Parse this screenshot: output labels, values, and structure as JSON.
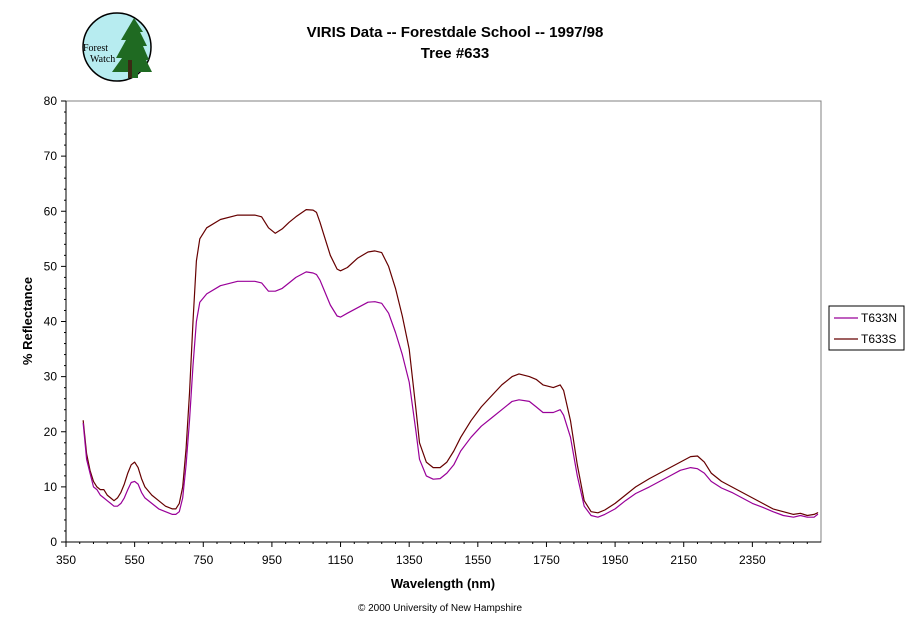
{
  "logo": {
    "line1": "Forest",
    "line2": "Watch"
  },
  "copyright": "© 2000 University of New Hampshire",
  "chart_data": {
    "type": "line",
    "title": "VIRIS Data -- Forestdale School -- 1997/98",
    "subtitle": "Tree #633",
    "xlabel": "Wavelength (nm)",
    "ylabel": "% Reflectance",
    "xlim": [
      350,
      2550
    ],
    "ylim": [
      0,
      80
    ],
    "xticks": [
      350,
      550,
      750,
      950,
      1150,
      1350,
      1550,
      1750,
      1950,
      2150,
      2350
    ],
    "yticks": [
      0,
      10,
      20,
      30,
      40,
      50,
      60,
      70,
      80
    ],
    "grid": false,
    "legend_position": "right",
    "series": [
      {
        "name": "T633N",
        "color": "#990099",
        "points": [
          [
            400,
            21.5
          ],
          [
            410,
            15
          ],
          [
            420,
            12.5
          ],
          [
            430,
            10
          ],
          [
            440,
            9.5
          ],
          [
            450,
            8.5
          ],
          [
            460,
            8
          ],
          [
            470,
            7.5
          ],
          [
            480,
            7
          ],
          [
            490,
            6.5
          ],
          [
            500,
            6.5
          ],
          [
            510,
            7
          ],
          [
            520,
            8
          ],
          [
            530,
            9.5
          ],
          [
            540,
            10.8
          ],
          [
            550,
            11
          ],
          [
            560,
            10.5
          ],
          [
            570,
            9
          ],
          [
            580,
            8
          ],
          [
            600,
            7
          ],
          [
            620,
            6
          ],
          [
            640,
            5.5
          ],
          [
            660,
            5
          ],
          [
            670,
            5
          ],
          [
            680,
            5.5
          ],
          [
            690,
            8
          ],
          [
            700,
            14
          ],
          [
            710,
            22
          ],
          [
            720,
            32
          ],
          [
            730,
            40
          ],
          [
            740,
            43.5
          ],
          [
            760,
            45
          ],
          [
            800,
            46.5
          ],
          [
            850,
            47.3
          ],
          [
            900,
            47.3
          ],
          [
            920,
            47
          ],
          [
            940,
            45.5
          ],
          [
            960,
            45.5
          ],
          [
            980,
            46
          ],
          [
            1000,
            47
          ],
          [
            1020,
            48
          ],
          [
            1050,
            49
          ],
          [
            1070,
            48.8
          ],
          [
            1080,
            48.5
          ],
          [
            1090,
            47.5
          ],
          [
            1100,
            46
          ],
          [
            1120,
            43
          ],
          [
            1140,
            41
          ],
          [
            1150,
            40.8
          ],
          [
            1170,
            41.5
          ],
          [
            1200,
            42.5
          ],
          [
            1230,
            43.5
          ],
          [
            1250,
            43.6
          ],
          [
            1270,
            43.3
          ],
          [
            1290,
            41.5
          ],
          [
            1310,
            38
          ],
          [
            1330,
            34
          ],
          [
            1350,
            29
          ],
          [
            1370,
            20
          ],
          [
            1380,
            15
          ],
          [
            1400,
            12
          ],
          [
            1420,
            11.4
          ],
          [
            1440,
            11.5
          ],
          [
            1460,
            12.5
          ],
          [
            1480,
            14
          ],
          [
            1500,
            16.5
          ],
          [
            1530,
            19
          ],
          [
            1560,
            21
          ],
          [
            1590,
            22.5
          ],
          [
            1620,
            24
          ],
          [
            1650,
            25.5
          ],
          [
            1670,
            25.8
          ],
          [
            1700,
            25.5
          ],
          [
            1720,
            24.5
          ],
          [
            1740,
            23.5
          ],
          [
            1770,
            23.5
          ],
          [
            1790,
            24
          ],
          [
            1800,
            23
          ],
          [
            1820,
            19
          ],
          [
            1840,
            12
          ],
          [
            1860,
            6.5
          ],
          [
            1880,
            4.8
          ],
          [
            1900,
            4.5
          ],
          [
            1920,
            5
          ],
          [
            1950,
            6
          ],
          [
            1980,
            7.5
          ],
          [
            2010,
            8.8
          ],
          [
            2050,
            10
          ],
          [
            2080,
            11
          ],
          [
            2110,
            12
          ],
          [
            2140,
            13
          ],
          [
            2170,
            13.5
          ],
          [
            2190,
            13.3
          ],
          [
            2210,
            12.5
          ],
          [
            2230,
            11
          ],
          [
            2260,
            9.8
          ],
          [
            2290,
            9
          ],
          [
            2320,
            8
          ],
          [
            2350,
            7
          ],
          [
            2380,
            6.3
          ],
          [
            2410,
            5.5
          ],
          [
            2440,
            4.8
          ],
          [
            2470,
            4.5
          ],
          [
            2490,
            4.8
          ],
          [
            2510,
            4.5
          ],
          [
            2530,
            4.5
          ],
          [
            2540,
            5
          ]
        ]
      },
      {
        "name": "T633S",
        "color": "#660000",
        "points": [
          [
            400,
            22
          ],
          [
            410,
            16
          ],
          [
            420,
            13
          ],
          [
            430,
            11
          ],
          [
            440,
            10
          ],
          [
            450,
            9.5
          ],
          [
            460,
            9.5
          ],
          [
            470,
            8.5
          ],
          [
            480,
            8
          ],
          [
            490,
            7.5
          ],
          [
            500,
            8
          ],
          [
            510,
            9
          ],
          [
            520,
            10.5
          ],
          [
            530,
            12.5
          ],
          [
            540,
            14
          ],
          [
            550,
            14.5
          ],
          [
            560,
            13.5
          ],
          [
            570,
            11.5
          ],
          [
            580,
            10
          ],
          [
            600,
            8.5
          ],
          [
            620,
            7.5
          ],
          [
            640,
            6.5
          ],
          [
            660,
            6
          ],
          [
            670,
            6
          ],
          [
            680,
            7
          ],
          [
            690,
            10
          ],
          [
            700,
            17
          ],
          [
            710,
            27
          ],
          [
            720,
            40
          ],
          [
            730,
            51
          ],
          [
            740,
            55
          ],
          [
            760,
            57
          ],
          [
            800,
            58.5
          ],
          [
            850,
            59.3
          ],
          [
            900,
            59.3
          ],
          [
            920,
            59
          ],
          [
            940,
            57
          ],
          [
            960,
            56
          ],
          [
            980,
            56.8
          ],
          [
            1000,
            58
          ],
          [
            1020,
            59
          ],
          [
            1050,
            60.3
          ],
          [
            1070,
            60.2
          ],
          [
            1080,
            59.8
          ],
          [
            1090,
            58
          ],
          [
            1100,
            56
          ],
          [
            1120,
            52
          ],
          [
            1140,
            49.5
          ],
          [
            1150,
            49.2
          ],
          [
            1170,
            49.8
          ],
          [
            1200,
            51.5
          ],
          [
            1230,
            52.6
          ],
          [
            1250,
            52.8
          ],
          [
            1270,
            52.5
          ],
          [
            1290,
            50
          ],
          [
            1310,
            46
          ],
          [
            1330,
            41
          ],
          [
            1350,
            35
          ],
          [
            1370,
            24
          ],
          [
            1380,
            18
          ],
          [
            1400,
            14.5
          ],
          [
            1420,
            13.5
          ],
          [
            1440,
            13.5
          ],
          [
            1460,
            14.5
          ],
          [
            1480,
            16.5
          ],
          [
            1500,
            19
          ],
          [
            1530,
            22
          ],
          [
            1560,
            24.5
          ],
          [
            1590,
            26.5
          ],
          [
            1620,
            28.5
          ],
          [
            1650,
            30
          ],
          [
            1670,
            30.5
          ],
          [
            1700,
            30
          ],
          [
            1720,
            29.5
          ],
          [
            1740,
            28.5
          ],
          [
            1770,
            28
          ],
          [
            1790,
            28.5
          ],
          [
            1800,
            27.5
          ],
          [
            1820,
            22
          ],
          [
            1840,
            14
          ],
          [
            1860,
            7.5
          ],
          [
            1880,
            5.5
          ],
          [
            1900,
            5.3
          ],
          [
            1920,
            5.8
          ],
          [
            1950,
            7
          ],
          [
            1980,
            8.5
          ],
          [
            2010,
            10
          ],
          [
            2050,
            11.5
          ],
          [
            2080,
            12.5
          ],
          [
            2110,
            13.5
          ],
          [
            2140,
            14.5
          ],
          [
            2170,
            15.5
          ],
          [
            2190,
            15.6
          ],
          [
            2210,
            14.5
          ],
          [
            2230,
            12.5
          ],
          [
            2260,
            11
          ],
          [
            2290,
            10
          ],
          [
            2320,
            9
          ],
          [
            2350,
            8
          ],
          [
            2380,
            7
          ],
          [
            2410,
            6
          ],
          [
            2440,
            5.5
          ],
          [
            2470,
            5
          ],
          [
            2490,
            5.2
          ],
          [
            2510,
            4.8
          ],
          [
            2530,
            5
          ],
          [
            2540,
            5.3
          ]
        ]
      }
    ]
  }
}
